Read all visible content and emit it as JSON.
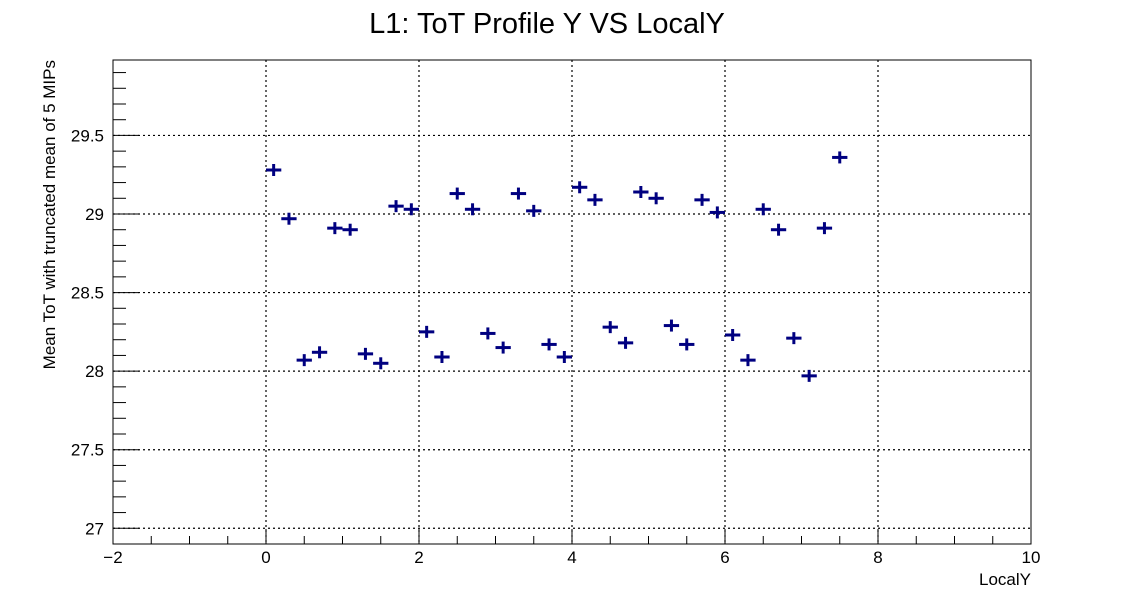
{
  "chart_data": {
    "type": "scatter",
    "title": "L1: ToT Profile Y VS LocalY",
    "xlabel": "LocalY",
    "ylabel": "Mean ToT with truncated mean of 5 MIPs",
    "xlim": [
      -2,
      10
    ],
    "ylim": [
      26.9,
      29.98
    ],
    "xticks": [
      -2,
      0,
      2,
      4,
      6,
      8,
      10
    ],
    "yticks": [
      27,
      27.5,
      28,
      28.5,
      29,
      29.5
    ],
    "xtick_labels": [
      "−2",
      "0",
      "2",
      "4",
      "6",
      "8",
      "10"
    ],
    "ytick_labels": [
      "27",
      "27.5",
      "28",
      "28.5",
      "29",
      "29.5"
    ],
    "grid": true,
    "marker_color": "#000080",
    "x_bin_width": 0.2,
    "series": [
      {
        "x": [
          0.1,
          0.3,
          0.5,
          0.7,
          0.9,
          1.1,
          1.3,
          1.5,
          1.7,
          1.9,
          2.1,
          2.3,
          2.5,
          2.7,
          2.9,
          3.1,
          3.3,
          3.5,
          3.7,
          3.9,
          4.1,
          4.3,
          4.5,
          4.7,
          4.9,
          5.1,
          5.3,
          5.5,
          5.7,
          5.9,
          6.1,
          6.3,
          6.5,
          6.7,
          6.9,
          7.1,
          7.3,
          7.5
        ],
        "y": [
          29.28,
          28.97,
          28.07,
          28.12,
          28.91,
          28.9,
          28.11,
          28.05,
          29.05,
          29.03,
          28.25,
          28.09,
          29.13,
          29.03,
          28.24,
          28.15,
          29.13,
          29.02,
          28.17,
          28.09,
          29.17,
          29.09,
          28.28,
          28.18,
          29.14,
          29.1,
          28.29,
          28.17,
          29.09,
          29.01,
          28.23,
          28.07,
          29.03,
          28.9,
          28.21,
          27.97,
          28.91,
          29.36
        ]
      }
    ]
  }
}
